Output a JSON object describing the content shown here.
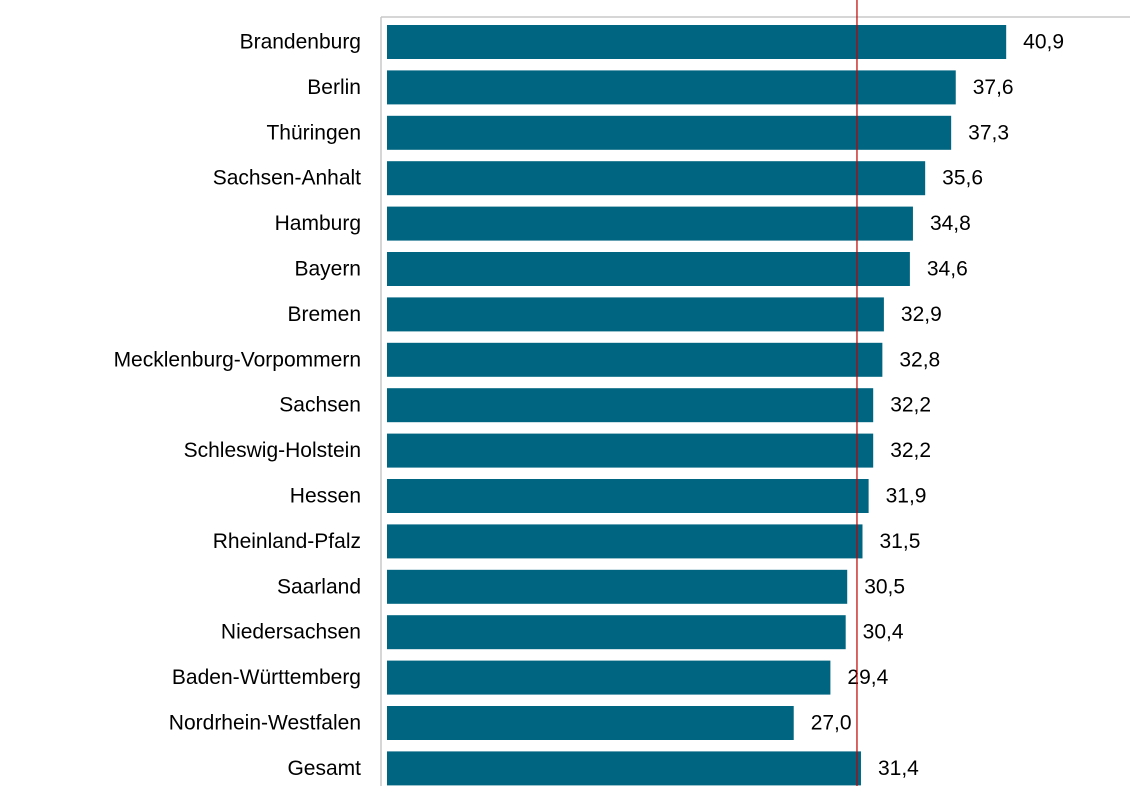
{
  "chart_data": {
    "type": "bar",
    "orientation": "horizontal",
    "categories": [
      "Brandenburg",
      "Berlin",
      "Thüringen",
      "Sachsen-Anhalt",
      "Hamburg",
      "Bayern",
      "Bremen",
      "Mecklenburg-Vorpommern",
      "Sachsen",
      "Schleswig-Holstein",
      "Hessen",
      "Rheinland-Pfalz",
      "Saarland",
      "Niedersachsen",
      "Baden-Württemberg",
      "Nordrhein-Westfalen",
      "Gesamt"
    ],
    "values": [
      40.9,
      37.6,
      37.3,
      35.6,
      34.8,
      34.6,
      32.9,
      32.8,
      32.2,
      32.2,
      31.9,
      31.5,
      30.5,
      30.4,
      29.4,
      27.0,
      31.4
    ],
    "value_labels": [
      "40,9",
      "37,6",
      "37,3",
      "35,6",
      "34,8",
      "34,6",
      "32,9",
      "32,8",
      "32,2",
      "32,2",
      "31,9",
      "31,5",
      "30,5",
      "30,4",
      "29,4",
      "27,0",
      "31,4"
    ],
    "color": "#006580",
    "reference_color": "#c00000",
    "xlim": [
      0,
      49
    ]
  }
}
